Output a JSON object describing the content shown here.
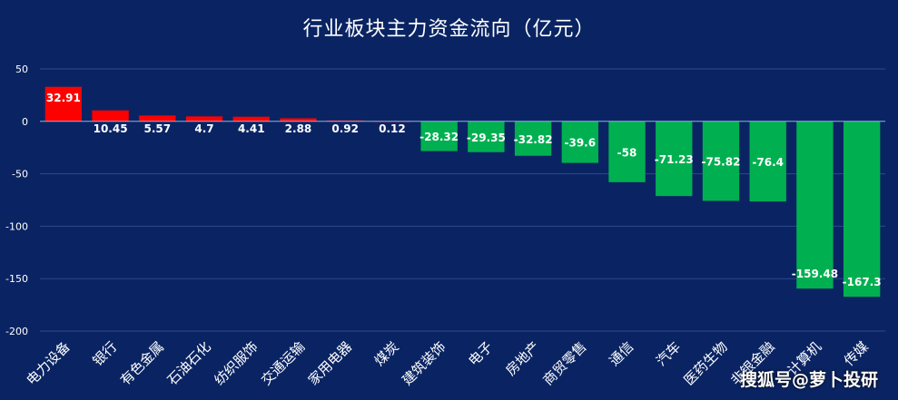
{
  "chart_data": {
    "type": "bar",
    "title": "行业板块主力资金流向（亿元）",
    "xlabel": "",
    "ylabel": "",
    "ylim": [
      -200,
      50
    ],
    "yticks": [
      50,
      0,
      -50,
      -100,
      -150,
      -200
    ],
    "grid": true,
    "legend": "none",
    "categories": [
      "电力设备",
      "银行",
      "有色金属",
      "石油石化",
      "纺织服饰",
      "交通运输",
      "家用电器",
      "煤炭",
      "建筑装饰",
      "电子",
      "房地产",
      "商贸零售",
      "通信",
      "汽车",
      "医药生物",
      "非银金融",
      "计算机",
      "传媒"
    ],
    "values": [
      32.91,
      10.45,
      5.57,
      4.7,
      4.41,
      2.88,
      0.92,
      0.12,
      -28.32,
      -29.35,
      -32.82,
      -39.6,
      -58,
      -71.23,
      -75.82,
      -76.4,
      -159.48,
      -167.3
    ],
    "data_labels": [
      "32.91",
      "10.45",
      "5.57",
      "4.7",
      "4.41",
      "2.88",
      "0.92",
      "0.12",
      "-28.32",
      "-29.35",
      "-32.82",
      "-39.6",
      "-58",
      "-71.23",
      "-75.82",
      "-76.4",
      "-159.48",
      "-167.3"
    ]
  },
  "colors": {
    "background": "#0a2463",
    "positive": "#ff0000",
    "negative": "#00b050",
    "gridline": "#2b4a8c",
    "zero_line": "#8fb0e0",
    "text": "#ffffff",
    "axis_text": "#ffffff"
  },
  "watermark": "搜狐号@萝卜投研"
}
